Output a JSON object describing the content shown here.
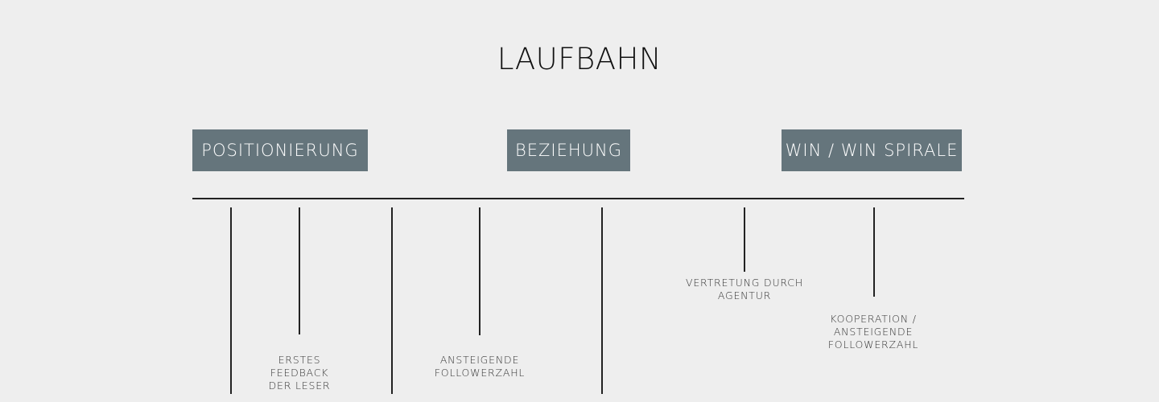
{
  "title": "LAUFBAHN",
  "phases": [
    {
      "label": "POSITIONIERUNG"
    },
    {
      "label": "BEZIEHUNG"
    },
    {
      "label": "WIN / WIN SPIRALE"
    }
  ],
  "milestones": [
    {
      "label": "ERSTES\nFEEDBACK\nDER LESER"
    },
    {
      "label": "ANSTEIGENDE\nFOLLOWERZAHL"
    },
    {
      "label": "VERTRETUNG DURCH\nAGENTUR"
    },
    {
      "label": "KOOPERATION /\nANSTEIGENDE\nFOLLOWERZAHL"
    }
  ],
  "colors": {
    "background": "#eeeeee",
    "phase_box": "#65757c",
    "line": "#222222"
  }
}
